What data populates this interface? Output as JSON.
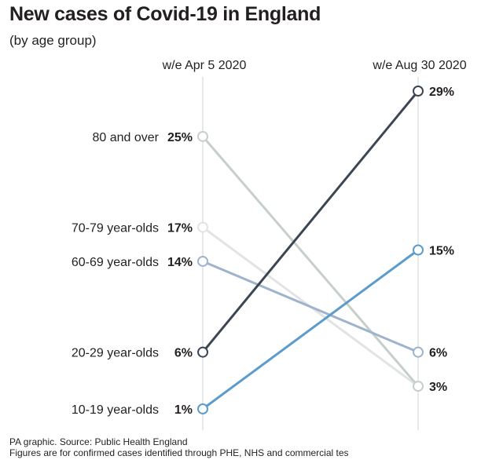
{
  "title": "New cases of Covid-19 in England",
  "subtitle": "(by age group)",
  "footer": {
    "source": "PA graphic. Source: Public Health England",
    "note": "Figures are for confirmed cases identified through PHE, NHS and commercial tes"
  },
  "chart_data": {
    "type": "line",
    "x": [
      "w/e Apr 5 2020",
      "w/e Aug 30 2020"
    ],
    "ylim": [
      1,
      29
    ],
    "grid": false,
    "series": [
      {
        "name": "80 and over",
        "values": [
          25,
          3
        ],
        "labels": [
          "25%",
          "3%"
        ],
        "color": "#c7cfcb"
      },
      {
        "name": "70-79 year-olds",
        "values": [
          17,
          3
        ],
        "labels": [
          "17%",
          ""
        ],
        "color": "#e1e4e3"
      },
      {
        "name": "60-69 year-olds",
        "values": [
          14,
          6
        ],
        "labels": [
          "14%",
          "6%"
        ],
        "color": "#9eb3cc"
      },
      {
        "name": "20-29 year-olds",
        "values": [
          6,
          29
        ],
        "labels": [
          "6%",
          "29%"
        ],
        "color": "#3c4653"
      },
      {
        "name": "10-19 year-olds",
        "values": [
          1,
          15
        ],
        "labels": [
          "1%",
          "15%"
        ],
        "color": "#5b9ccc"
      }
    ]
  }
}
